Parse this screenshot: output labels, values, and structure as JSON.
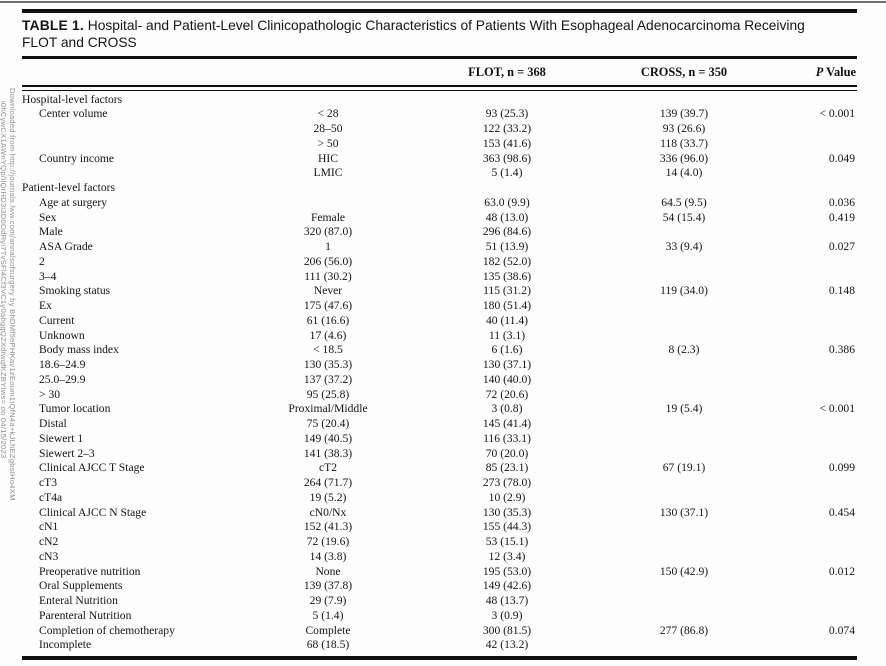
{
  "watermark": {
    "line1": "Downloaded from http://journals.lww.com/annalsofsurgery by BhDMf5ePHKav1zEoum1tQfN4a+kJLhEZgbsIHo4XM",
    "line2": "i0hCywCX1AWnYQp/IlQrHD3i3D0OdRyi7TvSFl4Cf3VC1y0abggQZXdtwqfKZBYtws= on 04/15/2023"
  },
  "table": {
    "title_label": "TABLE 1.",
    "title_line1": "Hospital- and Patient-Level Clinicopathologic Characteristics of Patients With Esophageal Adenocarcinoma Receiving",
    "title_line2": "FLOT and CROSS",
    "columns": {
      "flot": "FLOT, n = 368",
      "cross": "CROSS, n = 350",
      "p_symbol": "P",
      "p_word": "Value"
    },
    "rows": [
      {
        "section": true,
        "label": "Hospital-level factors",
        "category": "",
        "flot": "",
        "cross": "",
        "p": ""
      },
      {
        "label": "Center volume",
        "category": "< 28",
        "flot": "93 (25.3)",
        "cross": "139 (39.7)",
        "p": "< 0.001"
      },
      {
        "label": "",
        "category": "28–50",
        "flot": "122 (33.2)",
        "cross": "93 (26.6)",
        "p": ""
      },
      {
        "label": "",
        "category": "> 50",
        "flot": "153 (41.6)",
        "cross": "118 (33.7)",
        "p": ""
      },
      {
        "label": "Country income",
        "category": "HIC",
        "flot": "363 (98.6)",
        "cross": "336 (96.0)",
        "p": "0.049"
      },
      {
        "label": "",
        "category": "LMIC",
        "flot": "5 (1.4)",
        "cross": "14 (4.0)",
        "p": ""
      },
      {
        "section": true,
        "label": "Patient-level factors",
        "category": "",
        "flot": "",
        "cross": "",
        "p": ""
      },
      {
        "label": "Age at surgery",
        "category": "",
        "flot": "63.0 (9.9)",
        "cross": "64.5 (9.5)",
        "p": "0.036"
      },
      {
        "label": "Sex",
        "category": "Female",
        "flot": "48 (13.0)",
        "cross": "54 (15.4)",
        "p": "0.419"
      },
      {
        "label": "Male",
        "category": "320 (87.0)",
        "flot": "296 (84.6)",
        "cross": "",
        "p": ""
      },
      {
        "label": "ASA Grade",
        "category": "1",
        "flot": "51 (13.9)",
        "cross": "33 (9.4)",
        "p": "0.027"
      },
      {
        "label": "2",
        "category": "206 (56.0)",
        "flot": "182 (52.0)",
        "cross": "",
        "p": ""
      },
      {
        "label": "3–4",
        "category": "111 (30.2)",
        "flot": "135 (38.6)",
        "cross": "",
        "p": ""
      },
      {
        "label": "Smoking status",
        "category": "Never",
        "flot": "115 (31.2)",
        "cross": "119 (34.0)",
        "p": "0.148"
      },
      {
        "label": "Ex",
        "category": "175 (47.6)",
        "flot": "180 (51.4)",
        "cross": "",
        "p": ""
      },
      {
        "label": "Current",
        "category": "61 (16.6)",
        "flot": "40 (11.4)",
        "cross": "",
        "p": ""
      },
      {
        "label": "Unknown",
        "category": "17 (4.6)",
        "flot": "11 (3.1)",
        "cross": "",
        "p": ""
      },
      {
        "label": "Body mass index",
        "category": "< 18.5",
        "flot": "6 (1.6)",
        "cross": "8 (2.3)",
        "p": "0.386"
      },
      {
        "label": "18.6–24.9",
        "category": "130 (35.3)",
        "flot": "130 (37.1)",
        "cross": "",
        "p": ""
      },
      {
        "label": "25.0–29.9",
        "category": "137 (37.2)",
        "flot": "140 (40.0)",
        "cross": "",
        "p": ""
      },
      {
        "label": "> 30",
        "category": "95 (25.8)",
        "flot": "72 (20.6)",
        "cross": "",
        "p": ""
      },
      {
        "label": "Tumor location",
        "category": "Proximal/Middle",
        "flot": "3 (0.8)",
        "cross": "19 (5.4)",
        "p": "< 0.001"
      },
      {
        "label": "Distal",
        "category": "75 (20.4)",
        "flot": "145 (41.4)",
        "cross": "",
        "p": ""
      },
      {
        "label": "Siewert 1",
        "category": "149 (40.5)",
        "flot": "116 (33.1)",
        "cross": "",
        "p": ""
      },
      {
        "label": "Siewert 2–3",
        "category": "141 (38.3)",
        "flot": "70 (20.0)",
        "cross": "",
        "p": ""
      },
      {
        "label": "Clinical AJCC T Stage",
        "category": "cT2",
        "flot": "85 (23.1)",
        "cross": "67 (19.1)",
        "p": "0.099"
      },
      {
        "label": "cT3",
        "category": "264 (71.7)",
        "flot": "273 (78.0)",
        "cross": "",
        "p": ""
      },
      {
        "label": "cT4a",
        "category": "19 (5.2)",
        "flot": "10 (2.9)",
        "cross": "",
        "p": ""
      },
      {
        "label": "Clinical AJCC N Stage",
        "category": "cN0/Nx",
        "flot": "130 (35.3)",
        "cross": "130 (37.1)",
        "p": "0.454"
      },
      {
        "label": "cN1",
        "category": "152 (41.3)",
        "flot": "155 (44.3)",
        "cross": "",
        "p": ""
      },
      {
        "label": "cN2",
        "category": "72 (19.6)",
        "flot": "53 (15.1)",
        "cross": "",
        "p": ""
      },
      {
        "label": "cN3",
        "category": "14 (3.8)",
        "flot": "12 (3.4)",
        "cross": "",
        "p": ""
      },
      {
        "label": "Preoperative nutrition",
        "category": "None",
        "flot": "195 (53.0)",
        "cross": "150 (42.9)",
        "p": "0.012"
      },
      {
        "label": "Oral Supplements",
        "category": "139 (37.8)",
        "flot": "149 (42.6)",
        "cross": "",
        "p": ""
      },
      {
        "label": "Enteral Nutrition",
        "category": "29 (7.9)",
        "flot": "48 (13.7)",
        "cross": "",
        "p": ""
      },
      {
        "label": "Parenteral Nutrition",
        "category": "5 (1.4)",
        "flot": "3 (0.9)",
        "cross": "",
        "p": ""
      },
      {
        "label": "Completion of chemotherapy",
        "category": "Complete",
        "flot": "300 (81.5)",
        "cross": "277 (86.8)",
        "p": "0.074"
      },
      {
        "label": "Incomplete",
        "category": "68 (18.5)",
        "flot": "42 (13.2)",
        "cross": "",
        "p": ""
      }
    ]
  }
}
